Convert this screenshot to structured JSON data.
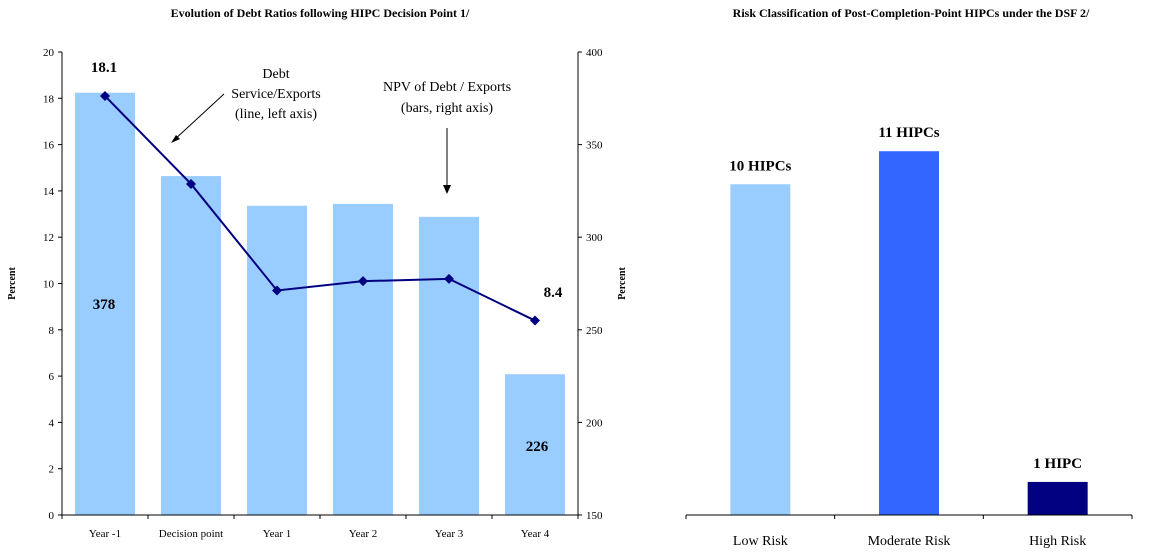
{
  "chart_data": [
    {
      "type": "bar+line",
      "title": "Evolution of Debt Ratios following HIPC Decision Point 1/",
      "categories": [
        "Year -1",
        "Decision point",
        "Year 1",
        "Year 2",
        "Year 3",
        "Year 4"
      ],
      "series": [
        {
          "name": "NPV of Debt / Exports (bars, right axis)",
          "kind": "bar",
          "axis": "right",
          "color": "#99ccff",
          "values": [
            378,
            333,
            317,
            318,
            311,
            226
          ]
        },
        {
          "name": "Debt Service/Exports (line, left axis)",
          "kind": "line",
          "axis": "left",
          "color": "#000080",
          "values": [
            18.1,
            14.3,
            9.7,
            10.1,
            10.2,
            8.4
          ]
        }
      ],
      "ylabel": "Percent",
      "y2label": "Percent",
      "ylim": [
        0,
        20
      ],
      "yticks": [
        "0",
        "2",
        "4",
        "6",
        "8",
        "10",
        "12",
        "14",
        "16",
        "18",
        "20"
      ],
      "y2lim": [
        150,
        400
      ],
      "y2ticks": [
        "150",
        "200",
        "250",
        "300",
        "350",
        "400"
      ],
      "labels": {
        "line_first": "18.1",
        "line_last": "8.4",
        "bar_first": "378",
        "bar_last": "226"
      },
      "annotations": {
        "debt_service": [
          "Debt",
          "Service/Exports",
          "(line, left axis)"
        ],
        "npv": [
          "NPV of Debt / Exports",
          "(bars, right axis)"
        ]
      },
      "grid": false,
      "legend": "none"
    },
    {
      "type": "bar",
      "title": "Risk Classification of Post-Completion-Point HIPCs under the DSF 2/",
      "categories": [
        "Low Risk",
        "Moderate Risk",
        "High Risk"
      ],
      "values": [
        10,
        11,
        1
      ],
      "data_labels": [
        "10 HIPCs",
        "11 HIPCs",
        "1 HIPC"
      ],
      "colors": [
        "#99ccff",
        "#3366ff",
        "#000080"
      ],
      "ylim": [
        0,
        14
      ],
      "grid": false,
      "legend": "none"
    }
  ]
}
